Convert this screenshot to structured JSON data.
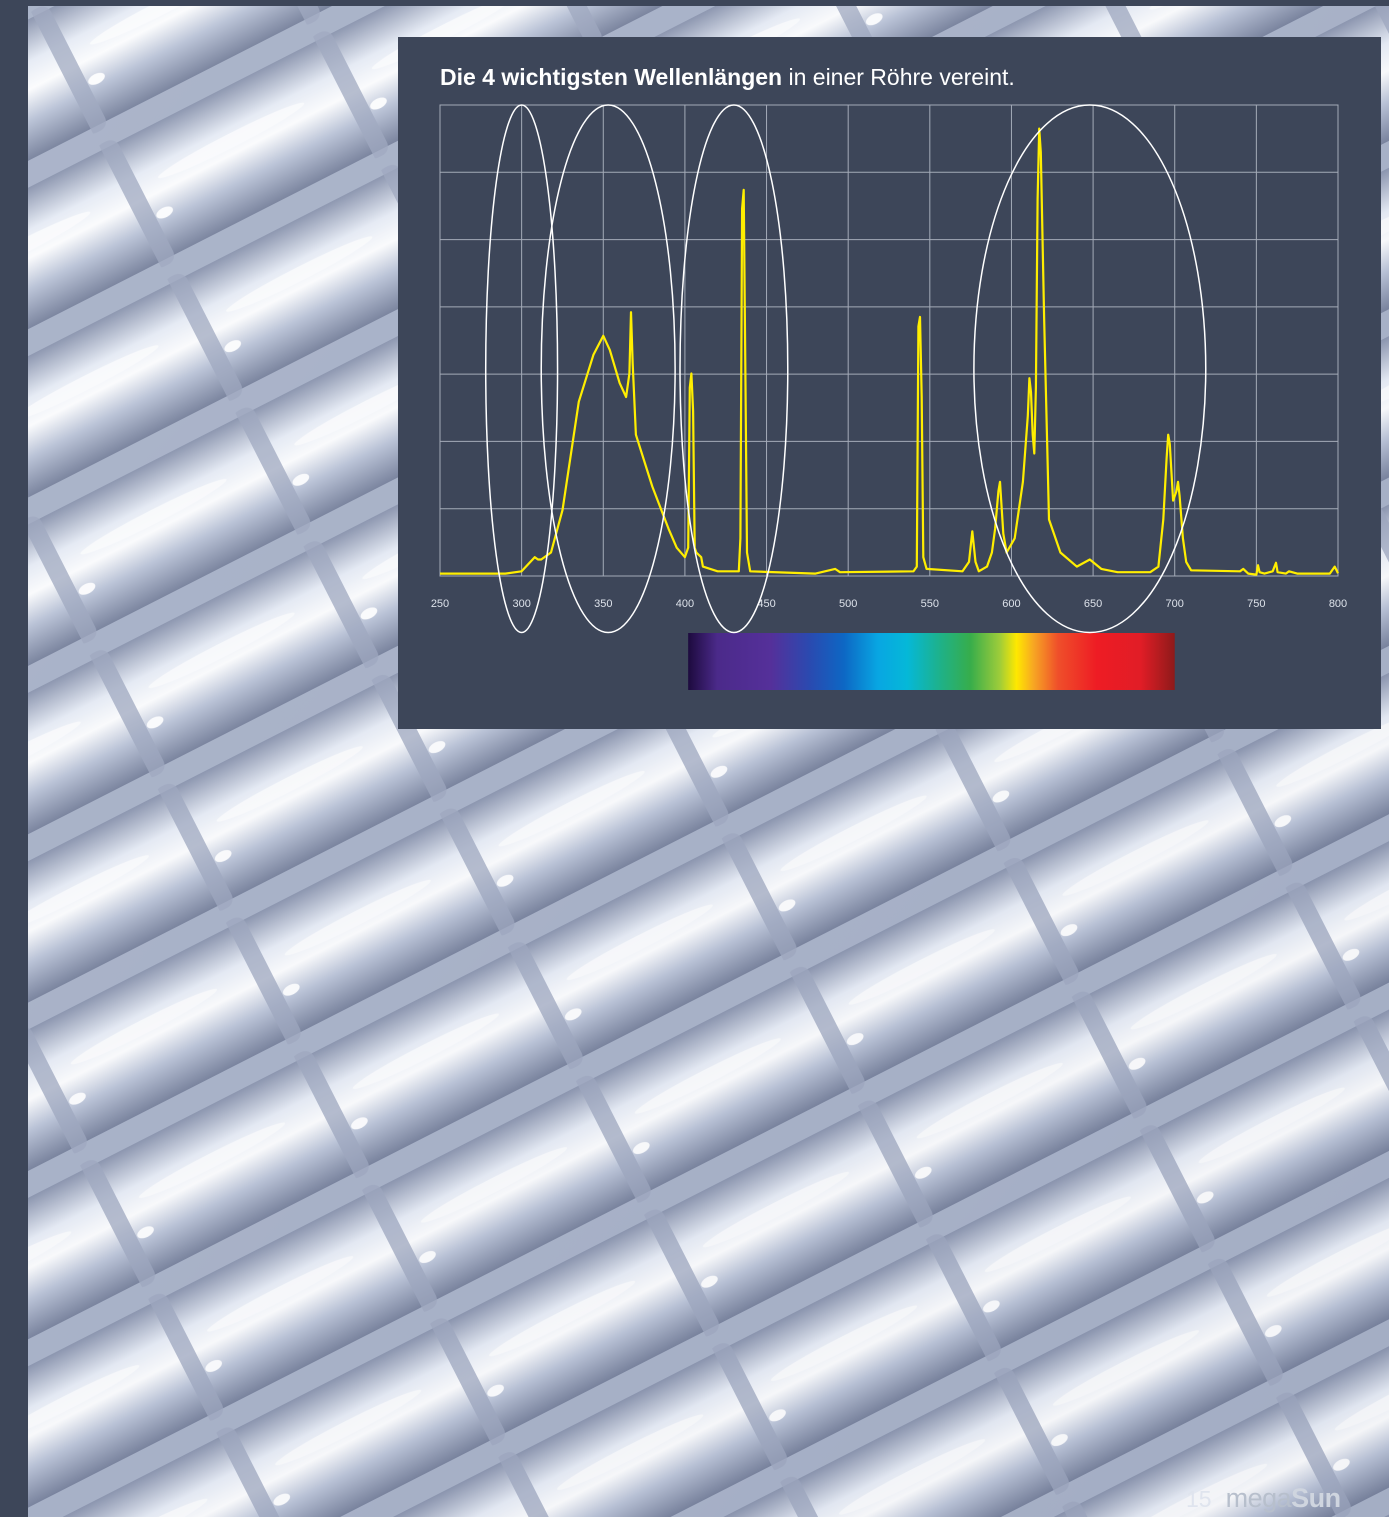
{
  "chart_title": {
    "bold": "Die 4 wichtigsten Wellenlängen",
    "rest": " in einer Röhre vereint."
  },
  "page_number": "15",
  "brand": {
    "part1": "mega",
    "part2": "Sun"
  },
  "colors": {
    "panel": "#3d4659",
    "curve": "#ffee00",
    "grid": "#a4abb8",
    "ellipse": "#ffffff",
    "tick_label": "#dde2ea"
  },
  "chart_data": {
    "type": "line",
    "title": "Die 4 wichtigsten Wellenlängen in einer Röhre vereint.",
    "xlabel": "",
    "ylabel": "",
    "xlim": [
      250,
      800
    ],
    "ylim": [
      0,
      100
    ],
    "x_ticks": [
      250,
      300,
      350,
      400,
      450,
      500,
      550,
      600,
      650,
      700,
      750,
      800
    ],
    "y_axis_labels_shown": false,
    "grid": true,
    "series": [
      {
        "points": [
          [
            250,
            0.5
          ],
          [
            290,
            0.5
          ],
          [
            300,
            1
          ],
          [
            308,
            4
          ],
          [
            310,
            3.5
          ],
          [
            312,
            3.5
          ],
          [
            318,
            5
          ],
          [
            325,
            14
          ],
          [
            335,
            37
          ],
          [
            344,
            47
          ],
          [
            350,
            51
          ],
          [
            354,
            48
          ],
          [
            360,
            41
          ],
          [
            364,
            38
          ],
          [
            366,
            43
          ],
          [
            367,
            56
          ],
          [
            368,
            45
          ],
          [
            370,
            30
          ],
          [
            380,
            19
          ],
          [
            390,
            10
          ],
          [
            395,
            6
          ],
          [
            400,
            4
          ],
          [
            402,
            6
          ],
          [
            403,
            40
          ],
          [
            404,
            43
          ],
          [
            405,
            35
          ],
          [
            406,
            6
          ],
          [
            407,
            5
          ],
          [
            410,
            4
          ],
          [
            411,
            2
          ],
          [
            420,
            1
          ],
          [
            433,
            1
          ],
          [
            434,
            8
          ],
          [
            435,
            78
          ],
          [
            436,
            82
          ],
          [
            437,
            45
          ],
          [
            438,
            5
          ],
          [
            440,
            1
          ],
          [
            480,
            0.5
          ],
          [
            492,
            1.5
          ],
          [
            495,
            0.8
          ],
          [
            540,
            1
          ],
          [
            542,
            2
          ],
          [
            543,
            53
          ],
          [
            544,
            55
          ],
          [
            545,
            38
          ],
          [
            546,
            4
          ],
          [
            548,
            1.5
          ],
          [
            570,
            1
          ],
          [
            574,
            3
          ],
          [
            576,
            9.5
          ],
          [
            578,
            3
          ],
          [
            580,
            1
          ],
          [
            585,
            2
          ],
          [
            588,
            5
          ],
          [
            590,
            10
          ],
          [
            592,
            18
          ],
          [
            593,
            20
          ],
          [
            595,
            9
          ],
          [
            597,
            5
          ],
          [
            602,
            8
          ],
          [
            607,
            20
          ],
          [
            610,
            34
          ],
          [
            611,
            42
          ],
          [
            612,
            39
          ],
          [
            613,
            30
          ],
          [
            614,
            26
          ],
          [
            615,
            40
          ],
          [
            616,
            80
          ],
          [
            617,
            95
          ],
          [
            618,
            90
          ],
          [
            620,
            55
          ],
          [
            623,
            12
          ],
          [
            626,
            9
          ],
          [
            630,
            5
          ],
          [
            640,
            2
          ],
          [
            648,
            3.5
          ],
          [
            655,
            1.5
          ],
          [
            665,
            0.8
          ],
          [
            685,
            0.8
          ],
          [
            690,
            2
          ],
          [
            693,
            12
          ],
          [
            695,
            25
          ],
          [
            696,
            30
          ],
          [
            697,
            28
          ],
          [
            699,
            16
          ],
          [
            701,
            18
          ],
          [
            702,
            20
          ],
          [
            703,
            17
          ],
          [
            705,
            8
          ],
          [
            707,
            3
          ],
          [
            710,
            1.2
          ],
          [
            740,
            1
          ],
          [
            742,
            1.5
          ],
          [
            745,
            0.5
          ],
          [
            750,
            0.3
          ],
          [
            751,
            2.3
          ],
          [
            752,
            0.8
          ],
          [
            755,
            0.5
          ],
          [
            760,
            1
          ],
          [
            762,
            2.8
          ],
          [
            763,
            0.8
          ],
          [
            768,
            0.5
          ],
          [
            770,
            1
          ],
          [
            775,
            0.5
          ],
          [
            795,
            0.5
          ],
          [
            798,
            2
          ],
          [
            800,
            0.6
          ]
        ]
      }
    ],
    "annotations": [
      {
        "type": "ellipse",
        "x_center": 300,
        "x_halfwidth": 22,
        "y_top": 100,
        "y_bottom": -12
      },
      {
        "type": "ellipse",
        "x_center": 353,
        "x_halfwidth": 41,
        "y_top": 100,
        "y_bottom": -12
      },
      {
        "type": "ellipse",
        "x_center": 430,
        "x_halfwidth": 33,
        "y_top": 100,
        "y_bottom": -12
      },
      {
        "type": "ellipse",
        "x_center": 648,
        "x_halfwidth": 71,
        "y_top": 100,
        "y_bottom": -12
      }
    ],
    "spectrum_bar": {
      "x_start": 402,
      "x_end": 700
    }
  }
}
